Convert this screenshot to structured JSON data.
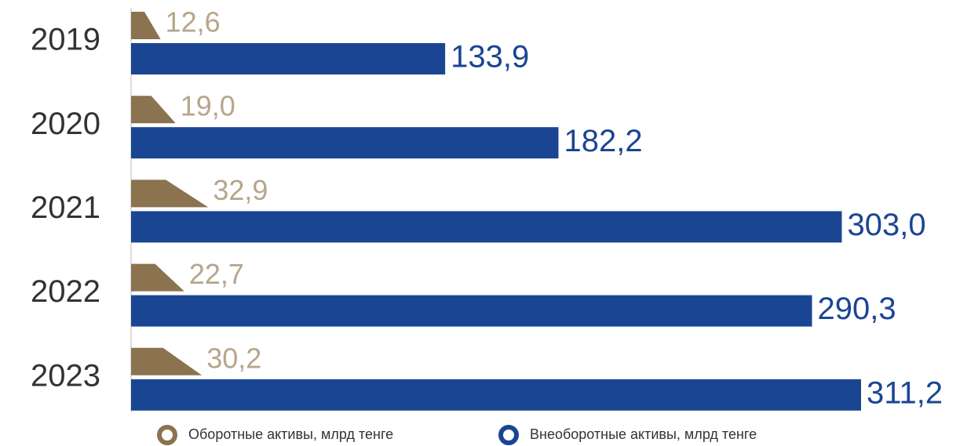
{
  "chart_data": {
    "type": "bar",
    "orientation": "horizontal",
    "categories": [
      "2019",
      "2020",
      "2021",
      "2022",
      "2023"
    ],
    "series": [
      {
        "name": "Оборотные активы, млрд тенге",
        "color": "#8b7350",
        "label_color": "#b7a58b",
        "values": [
          12.6,
          19.0,
          32.9,
          22.7,
          30.2
        ],
        "value_labels": [
          "12,6",
          "19,0",
          "32,9",
          "22,7",
          "30,2"
        ]
      },
      {
        "name": "Внеоборотные активы, млрд тенге",
        "color": "#1a4592",
        "label_color": "#1a4592",
        "values": [
          133.9,
          182.2,
          303.0,
          290.3,
          311.2
        ],
        "value_labels": [
          "133,9",
          "182,2",
          "303,0",
          "290,3",
          "311,2"
        ]
      }
    ],
    "xlim": [
      0,
      311.2
    ]
  }
}
